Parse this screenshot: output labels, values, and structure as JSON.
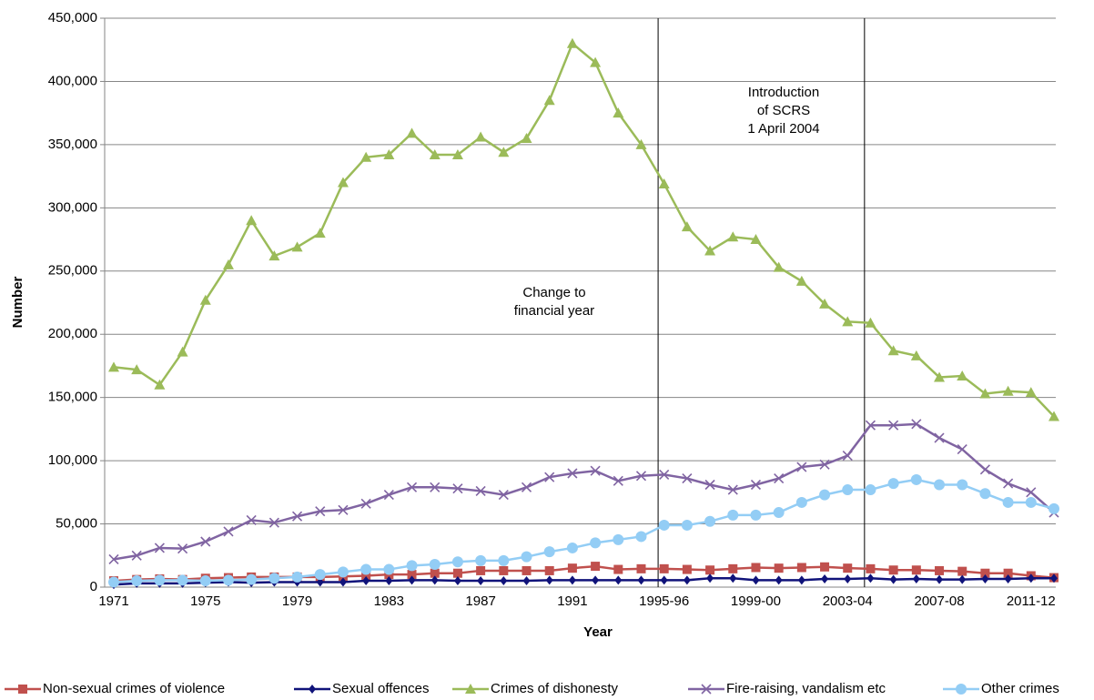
{
  "chart_data": {
    "type": "line",
    "x_label": "Year",
    "y_label": "Number",
    "categories": [
      "1971",
      null,
      null,
      null,
      "1975",
      null,
      null,
      null,
      "1979",
      null,
      null,
      null,
      "1983",
      null,
      null,
      null,
      "1987",
      null,
      null,
      null,
      "1991",
      null,
      null,
      null,
      "1995-96",
      null,
      null,
      null,
      "1999-00",
      null,
      null,
      null,
      "2003-04",
      null,
      null,
      null,
      "2007-08",
      null,
      null,
      null,
      "2011-12",
      null
    ],
    "ylim": [
      0,
      450000
    ],
    "yticks": [
      0,
      {
        "value": 50000,
        "label": "50,000"
      },
      {
        "value": 100000,
        "label": "100,000"
      },
      {
        "value": 150000,
        "label": "150,000"
      },
      {
        "value": 200000,
        "label": "200,000"
      },
      {
        "value": 250000,
        "label": "250,000"
      },
      {
        "value": 300000,
        "label": "300,000"
      },
      {
        "value": 350000,
        "label": "350,000"
      },
      {
        "value": 400000,
        "label": "400,000"
      },
      {
        "value": 450000,
        "label": "450,000"
      }
    ],
    "grid": true,
    "legend": "bottom",
    "annotations": [
      {
        "lines": [
          "Change to",
          "financial year"
        ]
      },
      {
        "lines": [
          "Introduction",
          "of SCRS",
          "1 April 2004"
        ]
      }
    ],
    "series": [
      {
        "name": "Non-sexual crimes of violence",
        "color": "#c0504d",
        "marker": "square",
        "values": [
          5000,
          6000,
          6500,
          6000,
          7000,
          7500,
          8000,
          8000,
          8000,
          8000,
          8500,
          9000,
          10000,
          10000,
          11000,
          11000,
          13000,
          13000,
          13000,
          13000,
          15000,
          16500,
          14000,
          14500,
          14500,
          14000,
          13500,
          14500,
          15500,
          15000,
          15500,
          16000,
          15000,
          14500,
          13500,
          13500,
          13000,
          12500,
          11000,
          11000,
          9000,
          7500
        ]
      },
      {
        "name": "Sexual offences",
        "color": "#10137a",
        "marker": "diamond",
        "values": [
          2000,
          3000,
          3000,
          3000,
          3500,
          4000,
          3500,
          4000,
          4000,
          4000,
          4000,
          5000,
          5000,
          5500,
          5500,
          5000,
          5000,
          5000,
          5000,
          5500,
          5500,
          5500,
          5500,
          5500,
          5500,
          5500,
          7000,
          7000,
          5500,
          5500,
          5500,
          6500,
          6500,
          7000,
          6000,
          6500,
          6000,
          6000,
          6500,
          6500,
          7000,
          7000
        ]
      },
      {
        "name": "Crimes of dishonesty",
        "color": "#9bbb59",
        "marker": "triangle",
        "values": [
          174000,
          172000,
          160000,
          186000,
          227000,
          255000,
          290000,
          262000,
          269000,
          280000,
          320000,
          340000,
          342000,
          359000,
          342000,
          342000,
          356000,
          344000,
          355000,
          385000,
          430000,
          415000,
          375000,
          350000,
          319000,
          285000,
          266000,
          277000,
          275000,
          253000,
          242000,
          224000,
          210000,
          209000,
          187000,
          183000,
          166000,
          167000,
          153000,
          155000,
          154000,
          135000
        ]
      },
      {
        "name": "Fire-raising, vandalism etc",
        "color": "#8064a2",
        "marker": "x",
        "values": [
          22000,
          25000,
          31000,
          30500,
          36000,
          44000,
          53000,
          51000,
          56000,
          60000,
          61000,
          66000,
          73000,
          79000,
          79000,
          78000,
          76000,
          73000,
          79000,
          87000,
          90000,
          92000,
          84000,
          88000,
          89000,
          86000,
          81000,
          77000,
          81000,
          86000,
          95000,
          97000,
          104000,
          128000,
          128000,
          129000,
          118000,
          109000,
          93000,
          82000,
          75000,
          59000
        ]
      },
      {
        "name": "Other crimes",
        "color": "#93cdf5",
        "marker": "circle",
        "values": [
          4000,
          5000,
          5500,
          5500,
          5000,
          5500,
          6000,
          7000,
          8000,
          10000,
          12000,
          14000,
          14000,
          17000,
          18000,
          20000,
          21000,
          21000,
          24000,
          28000,
          31000,
          35000,
          37500,
          40000,
          49000,
          49000,
          52000,
          57000,
          57000,
          59000,
          67000,
          73000,
          77000,
          77000,
          82000,
          85000,
          81000,
          81000,
          74000,
          67000,
          67000,
          62000
        ]
      }
    ]
  }
}
